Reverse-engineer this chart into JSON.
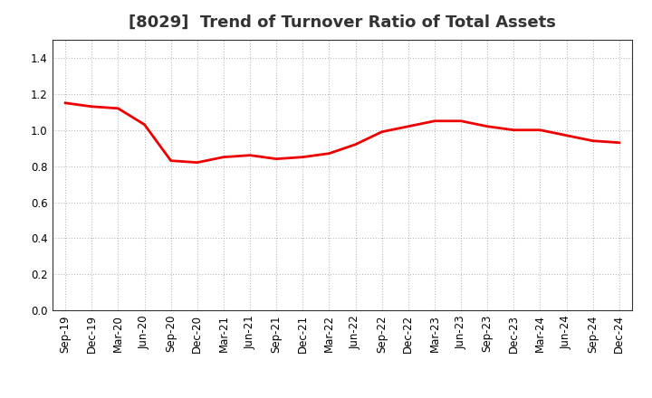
{
  "title": "[8029]  Trend of Turnover Ratio of Total Assets",
  "x_labels": [
    "Sep-19",
    "Dec-19",
    "Mar-20",
    "Jun-20",
    "Sep-20",
    "Dec-20",
    "Mar-21",
    "Jun-21",
    "Sep-21",
    "Dec-21",
    "Mar-22",
    "Jun-22",
    "Sep-22",
    "Dec-22",
    "Mar-23",
    "Jun-23",
    "Sep-23",
    "Dec-23",
    "Mar-24",
    "Jun-24",
    "Sep-24",
    "Dec-24"
  ],
  "y_values": [
    1.15,
    1.13,
    1.12,
    1.03,
    0.83,
    0.82,
    0.85,
    0.86,
    0.84,
    0.85,
    0.87,
    0.92,
    0.99,
    1.02,
    1.05,
    1.05,
    1.02,
    1.0,
    1.0,
    0.97,
    0.94,
    0.93
  ],
  "line_color": "#ee0000",
  "line_width": 2.0,
  "ylim": [
    0.0,
    1.5
  ],
  "yticks": [
    0.0,
    0.2,
    0.4,
    0.6,
    0.8,
    1.0,
    1.2,
    1.4
  ],
  "grid_color": "#bbbbbb",
  "grid_linestyle": ":",
  "grid_linewidth": 0.8,
  "background_color": "#ffffff",
  "title_fontsize": 13,
  "tick_fontsize": 8.5,
  "title_color": "#333333"
}
